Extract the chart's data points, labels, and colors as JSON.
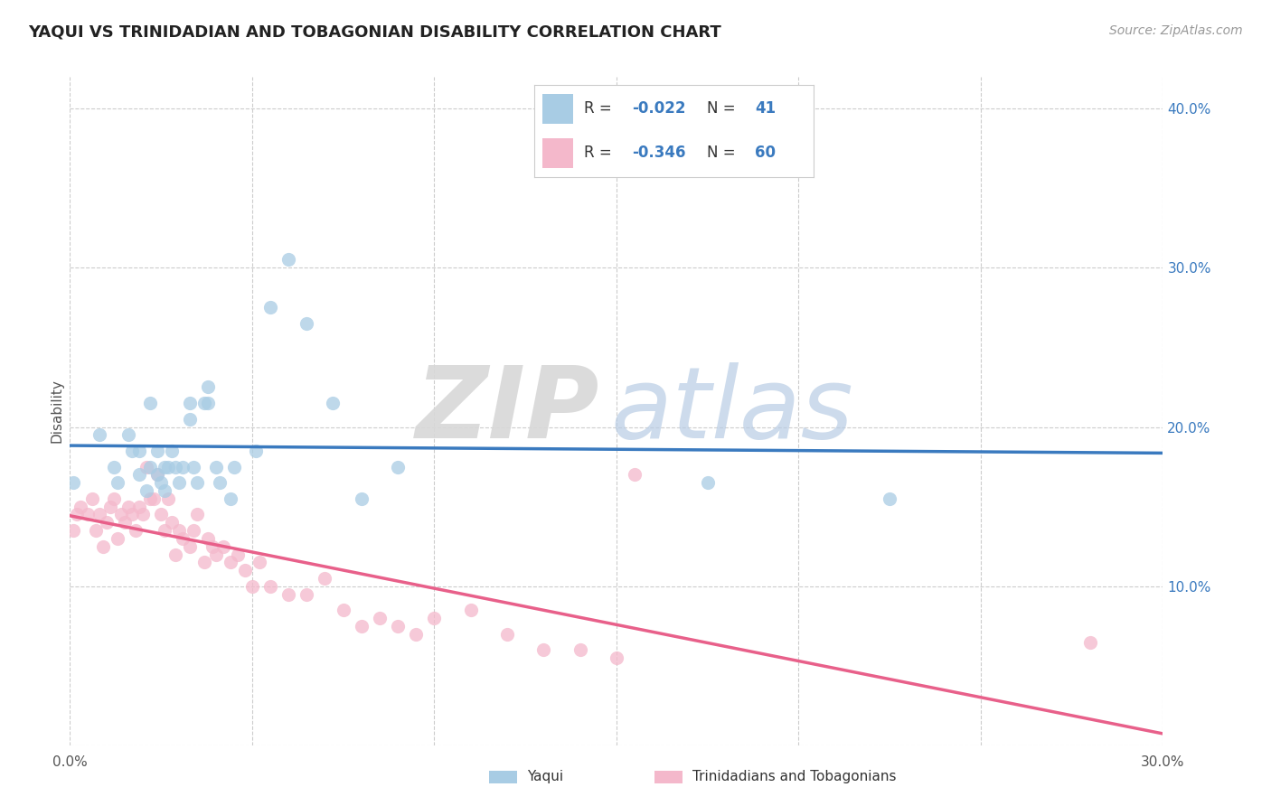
{
  "title": "YAQUI VS TRINIDADIAN AND TOBAGONIAN DISABILITY CORRELATION CHART",
  "source_text": "Source: ZipAtlas.com",
  "ylabel": "Disability",
  "xlim": [
    0.0,
    0.3
  ],
  "ylim": [
    0.0,
    0.42
  ],
  "x_ticks": [
    0.0,
    0.05,
    0.1,
    0.15,
    0.2,
    0.25,
    0.3
  ],
  "y_ticks": [
    0.0,
    0.1,
    0.2,
    0.3,
    0.4
  ],
  "color_yaqui": "#a8cce4",
  "color_tt": "#f4b8cb",
  "color_yaqui_line": "#3a7abf",
  "color_tt_line": "#e8608a",
  "background_color": "#ffffff",
  "grid_color": "#cccccc",
  "yaqui_x": [
    0.001,
    0.008,
    0.012,
    0.013,
    0.016,
    0.017,
    0.019,
    0.019,
    0.021,
    0.022,
    0.022,
    0.024,
    0.024,
    0.025,
    0.026,
    0.026,
    0.027,
    0.028,
    0.029,
    0.03,
    0.031,
    0.033,
    0.033,
    0.034,
    0.035,
    0.037,
    0.038,
    0.038,
    0.04,
    0.041,
    0.044,
    0.045,
    0.051,
    0.055,
    0.06,
    0.065,
    0.072,
    0.08,
    0.09,
    0.175,
    0.225
  ],
  "yaqui_y": [
    0.165,
    0.195,
    0.175,
    0.165,
    0.195,
    0.185,
    0.17,
    0.185,
    0.16,
    0.175,
    0.215,
    0.17,
    0.185,
    0.165,
    0.175,
    0.16,
    0.175,
    0.185,
    0.175,
    0.165,
    0.175,
    0.205,
    0.215,
    0.175,
    0.165,
    0.215,
    0.225,
    0.215,
    0.175,
    0.165,
    0.155,
    0.175,
    0.185,
    0.275,
    0.305,
    0.265,
    0.215,
    0.155,
    0.175,
    0.165,
    0.155
  ],
  "tt_x": [
    0.001,
    0.002,
    0.003,
    0.005,
    0.006,
    0.007,
    0.008,
    0.009,
    0.01,
    0.011,
    0.012,
    0.013,
    0.014,
    0.015,
    0.016,
    0.017,
    0.018,
    0.019,
    0.02,
    0.021,
    0.022,
    0.023,
    0.024,
    0.025,
    0.026,
    0.027,
    0.028,
    0.029,
    0.03,
    0.031,
    0.033,
    0.034,
    0.035,
    0.037,
    0.038,
    0.039,
    0.04,
    0.042,
    0.044,
    0.046,
    0.048,
    0.05,
    0.052,
    0.055,
    0.06,
    0.065,
    0.07,
    0.075,
    0.08,
    0.085,
    0.09,
    0.095,
    0.1,
    0.11,
    0.12,
    0.13,
    0.14,
    0.15,
    0.155,
    0.28
  ],
  "tt_y": [
    0.135,
    0.145,
    0.15,
    0.145,
    0.155,
    0.135,
    0.145,
    0.125,
    0.14,
    0.15,
    0.155,
    0.13,
    0.145,
    0.14,
    0.15,
    0.145,
    0.135,
    0.15,
    0.145,
    0.175,
    0.155,
    0.155,
    0.17,
    0.145,
    0.135,
    0.155,
    0.14,
    0.12,
    0.135,
    0.13,
    0.125,
    0.135,
    0.145,
    0.115,
    0.13,
    0.125,
    0.12,
    0.125,
    0.115,
    0.12,
    0.11,
    0.1,
    0.115,
    0.1,
    0.095,
    0.095,
    0.105,
    0.085,
    0.075,
    0.08,
    0.075,
    0.07,
    0.08,
    0.085,
    0.07,
    0.06,
    0.06,
    0.055,
    0.17,
    0.065
  ]
}
